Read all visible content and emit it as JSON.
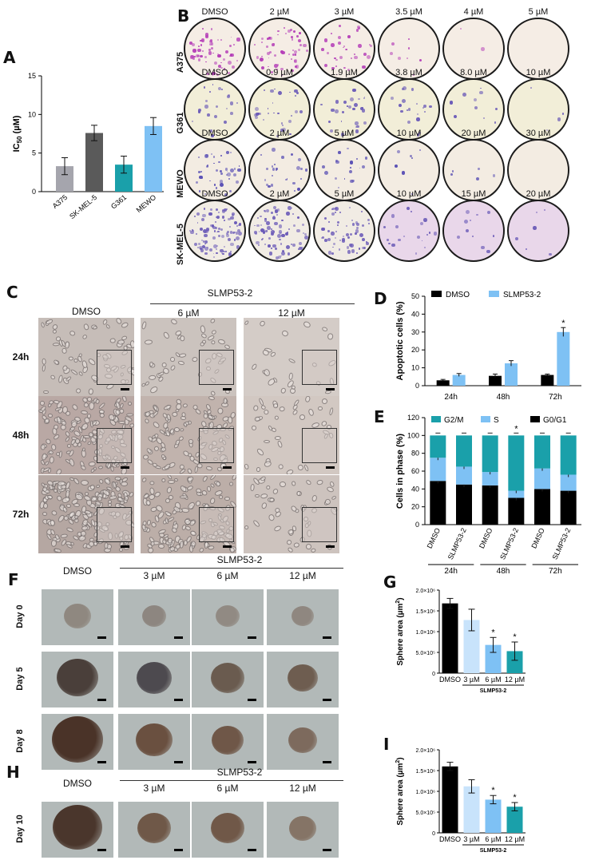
{
  "panels": {
    "A": "A",
    "B": "B",
    "C": "C",
    "D": "D",
    "E": "E",
    "F": "F",
    "G": "G",
    "H": "H",
    "I": "I"
  },
  "panel_b": {
    "rows": [
      {
        "label": "A375",
        "concentrations": [
          "DMSO",
          "2 µM",
          "3 µM",
          "3.5 µM",
          "4 µM",
          "5 µM"
        ],
        "colony_color": "#b53fb8"
      },
      {
        "label": "G361",
        "concentrations": [
          "DMSO",
          "0.9 µM",
          "1.9 µM",
          "3.8 µM",
          "8.0 µM",
          "10 µM"
        ],
        "colony_color": "#6b5bb8"
      },
      {
        "label": "MEWO",
        "concentrations": [
          "DMSO",
          "2 µM",
          "5 µM",
          "10 µM",
          "20 µM",
          "30 µM"
        ],
        "colony_color": "#5a50b5"
      },
      {
        "label": "SK-MEL-5",
        "concentrations": [
          "DMSO",
          "2 µM",
          "5 µM",
          "10 µM",
          "15 µM",
          "20 µM"
        ],
        "colony_color": "#6c5cb8"
      }
    ]
  },
  "panel_c": {
    "header_group": "SLMP53-2",
    "columns": [
      "DMSO",
      "6 µM",
      "12 µM"
    ],
    "rows": [
      "24h",
      "48h",
      "72h"
    ]
  },
  "panel_f": {
    "header_group": "SLMP53-2",
    "columns": [
      "DMSO",
      "3 µM",
      "6 µM",
      "12 µM"
    ],
    "rows": [
      "Day 0",
      "Day 5",
      "Day 8"
    ]
  },
  "panel_h": {
    "header_group": "SLMP53-2",
    "columns": [
      "DMSO",
      "3 µM",
      "6 µM",
      "12 µM"
    ],
    "rows": [
      "Day 10"
    ]
  },
  "chart_data": [
    {
      "panel": "A",
      "type": "bar",
      "categories": [
        "A375",
        "SK-MEL-5",
        "G361",
        "MEWO"
      ],
      "values": [
        3.3,
        7.6,
        3.5,
        8.5
      ],
      "errors": [
        1.1,
        1.0,
        1.1,
        1.1
      ],
      "colors": [
        "#a5a5ad",
        "#5a5a5a",
        "#1aa0aa",
        "#7ec1f4"
      ],
      "ylabel": "IC50 (µM)",
      "ylabel_main": "IC",
      "ylabel_sub": "50",
      "ylabel_unit": " (µM)",
      "ylim": [
        0,
        15
      ],
      "yticks": [
        "0",
        "5",
        "10",
        "15"
      ]
    },
    {
      "panel": "D",
      "type": "bar",
      "categories": [
        "24h",
        "48h",
        "72h"
      ],
      "series": [
        {
          "name": "DMSO",
          "values": [
            3.0,
            5.5,
            6.0
          ],
          "errors": [
            0.5,
            1.0,
            0.5
          ],
          "color": "#000000"
        },
        {
          "name": "SLMP53-2",
          "values": [
            6.0,
            12.5,
            30.0
          ],
          "errors": [
            0.8,
            1.5,
            2.5
          ],
          "color": "#7ec1f4"
        }
      ],
      "ylabel": "Apoptotic cells (%)",
      "ylim": [
        0,
        50
      ],
      "yticks": [
        "0",
        "10",
        "20",
        "30",
        "40",
        "50"
      ],
      "annotations": [
        "*"
      ]
    },
    {
      "panel": "E",
      "type": "bar",
      "categories": [
        "DMSO",
        "SLMP53-2",
        "DMSO",
        "SLMP53-2",
        "DMSO",
        "SLMP53-2"
      ],
      "groups": [
        "24h",
        "48h",
        "72h"
      ],
      "series": [
        {
          "name": "G0/G1",
          "values": [
            49,
            45,
            44,
            30,
            40,
            38
          ],
          "color": "#000000"
        },
        {
          "name": "S",
          "values": [
            26,
            20,
            15,
            8,
            23,
            18
          ],
          "color": "#7ec1f4"
        },
        {
          "name": "G2/M",
          "values": [
            25,
            35,
            41,
            62,
            37,
            44
          ],
          "color": "#1aa0aa"
        }
      ],
      "ylabel": "Cells in phase (%)",
      "ylim": [
        0,
        120
      ],
      "yticks": [
        "0",
        "20",
        "40",
        "60",
        "80",
        "100",
        "120"
      ],
      "annotations": [
        "*"
      ]
    },
    {
      "panel": "G",
      "type": "bar",
      "categories": [
        "DMSO",
        "3 µM",
        "6 µM",
        "12 µM"
      ],
      "values": [
        1680000,
        1280000,
        680000,
        530000
      ],
      "errors": [
        120000,
        260000,
        180000,
        220000
      ],
      "colors": [
        "#000000",
        "#c8e3fb",
        "#7ec1f4",
        "#1aa0aa"
      ],
      "ylabel": "Sphere area (µm2)",
      "ylabel_text": "Sphere area (µm",
      "ylabel_sup": "2",
      "ylabel_close": ")",
      "ylim": [
        0,
        2000000
      ],
      "yticks": [
        "0",
        "5.0×10⁵",
        "1.0×10⁶",
        "1.5×10⁶",
        "2.0×10⁶"
      ],
      "group_label": "SLMP53-2",
      "annotations": [
        "*",
        "*"
      ]
    },
    {
      "panel": "I",
      "type": "bar",
      "categories": [
        "DMSO",
        "3 µM",
        "6 µM",
        "12 µM"
      ],
      "values": [
        1600000,
        1120000,
        800000,
        630000
      ],
      "errors": [
        100000,
        160000,
        100000,
        100000
      ],
      "colors": [
        "#000000",
        "#c8e3fb",
        "#7ec1f4",
        "#1aa0aa"
      ],
      "ylabel": "Sphere area (µm2)",
      "ylabel_text": "Sphere area (µm",
      "ylabel_sup": "2",
      "ylabel_close": ")",
      "ylim": [
        0,
        2000000
      ],
      "yticks": [
        "0",
        "5.0×10⁵",
        "1.0×10⁶",
        "1.5×10⁶",
        "2.0×10⁶"
      ],
      "group_label": "SLMP53-2",
      "annotations": [
        "*",
        "*"
      ]
    }
  ]
}
